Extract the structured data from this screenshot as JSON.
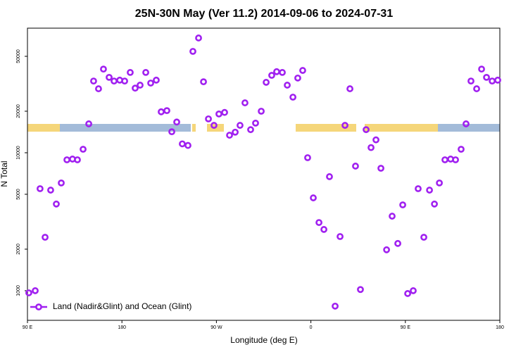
{
  "chart_data": {
    "type": "scatter",
    "title": "25N-30N May (Ver 11.2)   2014-09-06 to 2024-07-31",
    "x_label": "Longitude (deg E)",
    "y_label": "N Total",
    "log_y": true,
    "legend": "lower left",
    "xlim": [
      90,
      540
    ],
    "xticks": [
      {
        "value": 90,
        "label": "90 E"
      },
      180,
      {
        "value": 270,
        "label": "90 W"
      },
      {
        "value": 360,
        "label": "0"
      },
      {
        "value": 450,
        "label": "90 E"
      },
      {
        "value": 540,
        "label": "180"
      }
    ],
    "ylim": [
      610,
      80000
    ],
    "yticks": [
      1000,
      2000,
      5000,
      10000,
      20000,
      50000
    ],
    "series": [
      {
        "name": "Land (Nadir&Glint) and Ocean (Glint)",
        "color": "#a020f0",
        "x": [
          91.3,
          97.4,
          102,
          106.8,
          112.1,
          117.5,
          122.2,
          127.6,
          132.9,
          137.6,
          143,
          148.4,
          153,
          157.7,
          162.4,
          167.8,
          172.5,
          177.9,
          182.6,
          187.9,
          192.6,
          197.3,
          202.7,
          207.4,
          212.7,
          217.4,
          222.8,
          227.5,
          232.2,
          237.5,
          242.9,
          247.6,
          253,
          257.7,
          262.4,
          267.7,
          272.4,
          277.8,
          282.5,
          287.9,
          292.5,
          297.2,
          302.6,
          307.3,
          312.7,
          317.4,
          322.7,
          327.4,
          332.8,
          337.5,
          342.9,
          347.5,
          352.2,
          356.9,
          362.3,
          367.7,
          372.4,
          377.7,
          383.1,
          387.8,
          392.5,
          397.2,
          402.5,
          407.2,
          412.6,
          417.3,
          422,
          426.7,
          432.1,
          437.4,
          442.8,
          447.5,
          452.2,
          457.5,
          462.2,
          467.6,
          473,
          477.7,
          482.4,
          487.7,
          493.1,
          497.8,
          503.1,
          507.8,
          512.5,
          517.9,
          522.6,
          527.3,
          532.7,
          538
        ],
        "values": [
          965,
          1000,
          5490,
          2440,
          5360,
          4250,
          6040,
          8890,
          9000,
          8890,
          10600,
          16200,
          33100,
          29100,
          40400,
          35200,
          33100,
          33600,
          33100,
          38200,
          29400,
          30900,
          38200,
          32000,
          33600,
          19800,
          20200,
          14200,
          16700,
          11600,
          11300,
          54300,
          67900,
          32700,
          17600,
          15800,
          19100,
          19600,
          13400,
          14100,
          15800,
          23000,
          14700,
          16400,
          20000,
          32400,
          36400,
          38700,
          38200,
          30900,
          25300,
          34800,
          39500,
          9210,
          4710,
          3120,
          2780,
          6710,
          773,
          2470,
          15800,
          29100,
          8000,
          1020,
          14700,
          10900,
          12400,
          7720,
          1980,
          3470,
          2200,
          4190,
          954,
          1000,
          5490,
          2440,
          5360,
          4250,
          6040,
          8890,
          9000,
          8890,
          10600,
          16200,
          33100,
          29100,
          40400,
          35200,
          33100,
          33600
        ]
      }
    ]
  }
}
